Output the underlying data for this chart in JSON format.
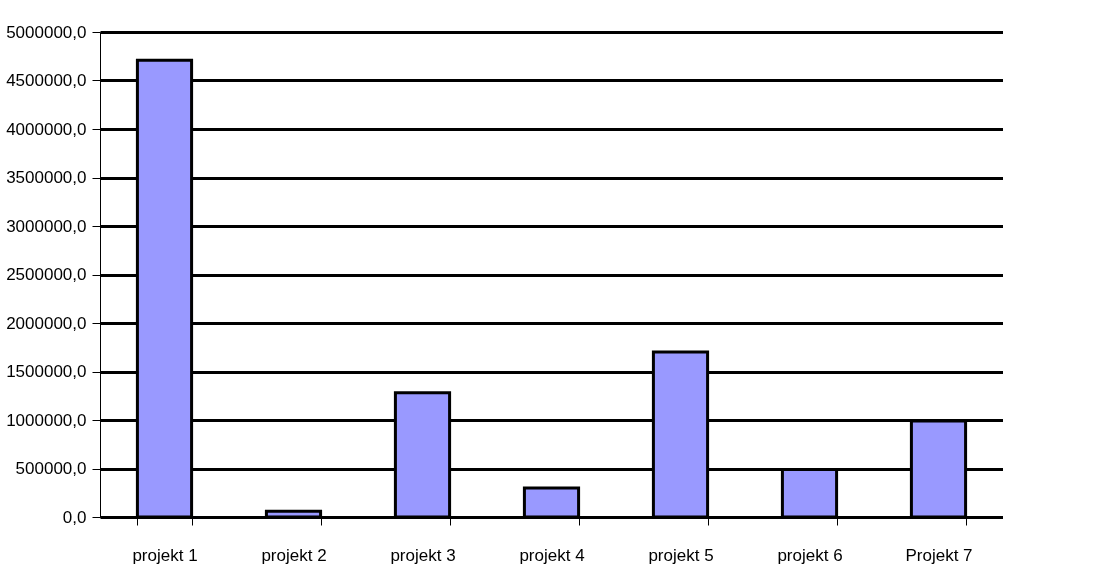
{
  "chart_data": {
    "type": "bar",
    "categories": [
      "projekt 1",
      "projekt 2",
      "projekt 3",
      "projekt 4",
      "projekt 5",
      "projekt 6",
      "Projekt 7"
    ],
    "values": [
      4710000,
      60000,
      1280000,
      300000,
      1700000,
      490000,
      990000
    ],
    "color": "#9999ff",
    "ylim": [
      0,
      5000000
    ],
    "yticks": [
      {
        "value": 0,
        "label": "0,0"
      },
      {
        "value": 500000,
        "label": "500000,0"
      },
      {
        "value": 1000000,
        "label": "1000000,0"
      },
      {
        "value": 1500000,
        "label": "1500000,0"
      },
      {
        "value": 2000000,
        "label": "2000000,0"
      },
      {
        "value": 2500000,
        "label": "2500000,0"
      },
      {
        "value": 3000000,
        "label": "3000000,0"
      },
      {
        "value": 3500000,
        "label": "3500000,0"
      },
      {
        "value": 4000000,
        "label": "4000000,0"
      },
      {
        "value": 4500000,
        "label": "4500000,0"
      },
      {
        "value": 5000000,
        "label": "5000000,0"
      }
    ],
    "grid": "y"
  }
}
